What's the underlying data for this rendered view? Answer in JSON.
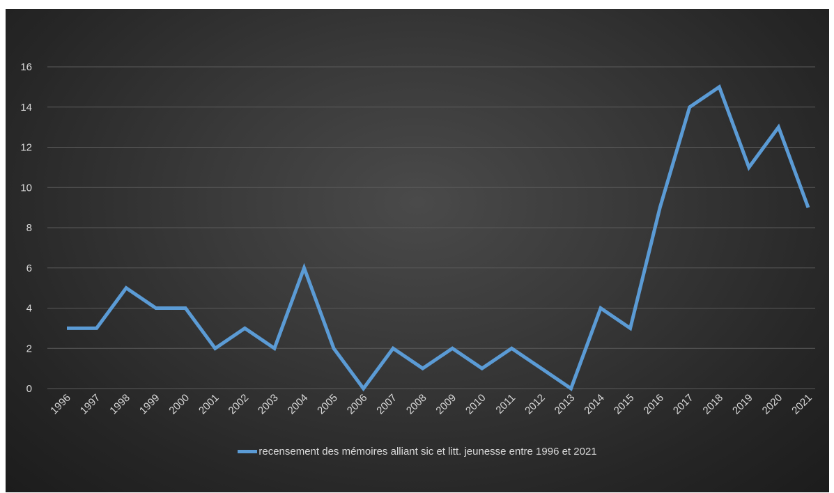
{
  "chart_data": {
    "type": "line",
    "title": "",
    "xlabel": "",
    "ylabel": "",
    "categories": [
      "1996",
      "1997",
      "1998",
      "1999",
      "2000",
      "2001",
      "2002",
      "2003",
      "2004",
      "2005",
      "2006",
      "2007",
      "2008",
      "2009",
      "2010",
      "2011",
      "2012",
      "2013",
      "2014",
      "2015",
      "2016",
      "2017",
      "2018",
      "2019",
      "2020",
      "2021"
    ],
    "series": [
      {
        "name": "recensement des mémoires alliant sic et litt. jeunesse entre 1996 et 2021",
        "color": "#5b9bd5",
        "values": [
          3,
          3,
          5,
          4,
          4,
          2,
          3,
          2,
          6,
          2,
          0,
          2,
          1,
          2,
          1,
          2,
          1,
          0,
          4,
          3,
          9,
          14,
          15,
          11,
          13,
          9
        ]
      }
    ],
    "ylim": [
      0,
      16
    ],
    "yticks": [
      "0",
      "2",
      "4",
      "6",
      "8",
      "10",
      "12",
      "14",
      "16"
    ],
    "grid": true,
    "legend_position": "bottom",
    "background": "#333333"
  }
}
